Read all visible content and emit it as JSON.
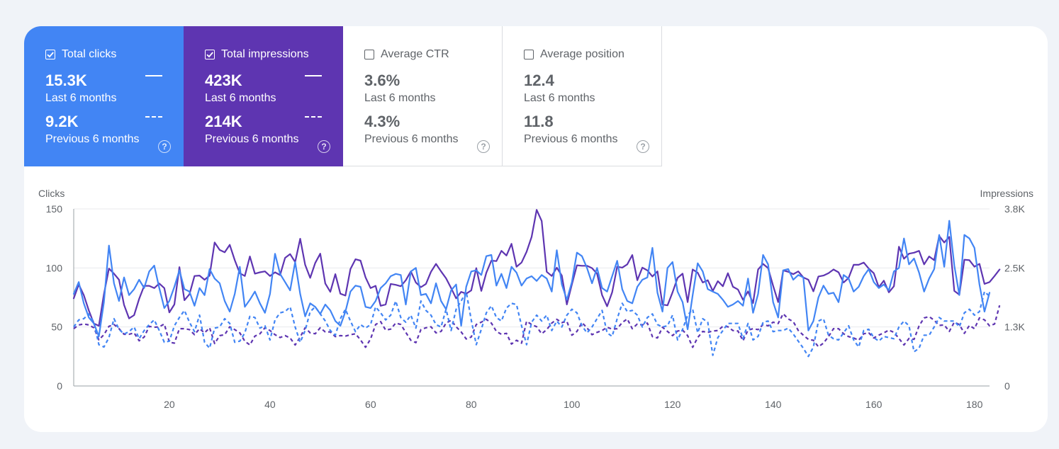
{
  "metrics": [
    {
      "title": "Total clicks",
      "checked": true,
      "current_value": "15.3K",
      "current_label": "Last 6 months",
      "previous_value": "9.2K",
      "previous_label": "Previous 6 months",
      "color": "#4285f4"
    },
    {
      "title": "Total impressions",
      "checked": true,
      "current_value": "423K",
      "current_label": "Last 6 months",
      "previous_value": "214K",
      "previous_label": "Previous 6 months",
      "color": "#5e35b1"
    },
    {
      "title": "Average CTR",
      "checked": false,
      "current_value": "3.6%",
      "current_label": "Last 6 months",
      "previous_value": "4.3%",
      "previous_label": "Previous 6 months",
      "color": "#ffffff"
    },
    {
      "title": "Average position",
      "checked": false,
      "current_value": "12.4",
      "current_label": "Last 6 months",
      "previous_value": "11.8",
      "previous_label": "Previous 6 months",
      "color": "#ffffff"
    }
  ],
  "help_glyph": "?",
  "chart_data": {
    "type": "line",
    "title": "",
    "ylabel": "Clicks",
    "ylabel_right": "Impressions",
    "xlabel": "",
    "xlim": [
      1,
      183
    ],
    "ylim": [
      0,
      150
    ],
    "ylim_right": [
      0,
      3800
    ],
    "y_ticks": [
      "0",
      "50",
      "100",
      "150"
    ],
    "y_right_ticks": [
      "0",
      "1.3K",
      "2.5K",
      "3.8K"
    ],
    "x_ticks": [
      20,
      40,
      60,
      80,
      100,
      120,
      140,
      160,
      180
    ],
    "grid": true,
    "legend": "metric cards above chart",
    "colors": {
      "clicks": "#4285f4",
      "impressions": "#5e35b1"
    },
    "series": [
      {
        "name": "Impressions (Last 6 months)",
        "axis": "right",
        "style": "solid",
        "color": "#5e35b1",
        "values": [
          1880,
          2180,
          1950,
          1620,
          1340,
          1290,
          1970,
          2520,
          2410,
          2280,
          1740,
          1450,
          1520,
          1870,
          2150,
          2150,
          2100,
          2200,
          2100,
          1580,
          1750,
          2550,
          1840,
          1970,
          2360,
          2370,
          2280,
          2370,
          3080,
          2920,
          2870,
          3030,
          2700,
          2420,
          2360,
          2780,
          2410,
          2440,
          2460,
          2360,
          2440,
          2380,
          2750,
          2830,
          2660,
          3160,
          2600,
          2320,
          2640,
          2840,
          2200,
          2020,
          2400,
          1980,
          1940,
          2510,
          2720,
          2690,
          2330,
          2100,
          2150,
          1720,
          1750,
          2190,
          2170,
          2140,
          2270,
          2460,
          2220,
          2120,
          2190,
          2450,
          2620,
          2460,
          2310,
          2100,
          1880,
          2020,
          1980,
          2050,
          2530,
          2040,
          2430,
          2690,
          2680,
          2900,
          2800,
          3050,
          2560,
          2650,
          2880,
          3200,
          3780,
          3540,
          2450,
          2360,
          2540,
          2370,
          1750,
          2180,
          2590,
          2580,
          2580,
          2530,
          2410,
          1950,
          1710,
          2010,
          2560,
          2540,
          2610,
          2810,
          2270,
          2540,
          2480,
          2350,
          2460,
          1750,
          1730,
          2010,
          2320,
          2410,
          1800,
          2500,
          2430,
          2220,
          2270,
          2040,
          2250,
          2140,
          2420,
          2130,
          2070,
          1850,
          2030,
          1780,
          2500,
          2620,
          2530,
          2150,
          1800,
          2480,
          2450,
          2400,
          2460,
          2330,
          2280,
          2030,
          2350,
          2370,
          2420,
          2500,
          2440,
          2220,
          2320,
          2600,
          2600,
          2650,
          2520,
          2420,
          2120,
          2260,
          2010,
          2140,
          2990,
          2730,
          2840,
          2860,
          2900,
          2610,
          2780,
          2700,
          3220,
          3080,
          3200,
          2040,
          1960,
          2710,
          2700,
          2560,
          2620,
          2190,
          2230,
          2360,
          2500
        ]
      },
      {
        "name": "Clicks (Last 6 months)",
        "axis": "left",
        "style": "solid",
        "color": "#4285f4",
        "values": [
          78,
          88,
          70,
          58,
          53,
          42,
          71,
          119,
          87,
          72,
          92,
          77,
          82,
          90,
          83,
          97,
          102,
          83,
          66,
          72,
          84,
          98,
          82,
          80,
          68,
          83,
          77,
          99,
          91,
          87,
          72,
          63,
          78,
          101,
          67,
          73,
          80,
          70,
          62,
          78,
          112,
          95,
          88,
          81,
          105,
          78,
          59,
          70,
          67,
          61,
          69,
          64,
          55,
          51,
          63,
          80,
          85,
          84,
          67,
          66,
          72,
          83,
          87,
          93,
          95,
          94,
          69,
          97,
          100,
          77,
          78,
          70,
          87,
          72,
          65,
          81,
          86,
          51,
          84,
          97,
          98,
          94,
          110,
          111,
          85,
          95,
          83,
          101,
          96,
          85,
          91,
          93,
          89,
          94,
          91,
          80,
          115,
          86,
          73,
          88,
          113,
          110,
          100,
          87,
          100,
          83,
          80,
          93,
          106,
          82,
          72,
          70,
          84,
          90,
          92,
          117,
          79,
          63,
          100,
          105,
          80,
          71,
          48,
          77,
          104,
          97,
          82,
          80,
          78,
          73,
          67,
          69,
          72,
          68,
          91,
          62,
          78,
          111,
          103,
          71,
          58,
          98,
          99,
          90,
          94,
          92,
          47,
          55,
          75,
          85,
          78,
          79,
          71,
          94,
          91,
          80,
          84,
          93,
          99,
          88,
          83,
          86,
          81,
          97,
          100,
          125,
          103,
          108,
          96,
          80,
          91,
          99,
          128,
          101,
          140,
          102,
          77,
          128,
          125,
          117,
          86,
          63,
          79
        ]
      },
      {
        "name": "Impressions (Previous 6 months)",
        "axis": "right",
        "style": "dashed",
        "color": "#5e35b1",
        "values": [
          1230,
          1310,
          1330,
          1310,
          1250,
          990,
          1100,
          1280,
          1320,
          1230,
          1110,
          1110,
          1140,
          970,
          1050,
          1280,
          1260,
          1270,
          1330,
          940,
          920,
          1230,
          1230,
          1210,
          1100,
          1230,
          1140,
          1250,
          910,
          1080,
          1100,
          1270,
          1210,
          1140,
          960,
          880,
          1070,
          1120,
          1250,
          1190,
          1100,
          1040,
          1080,
          1030,
          880,
          1050,
          1250,
          1140,
          1120,
          1250,
          1160,
          1160,
          1060,
          1080,
          1070,
          1100,
          1120,
          990,
          830,
          1010,
          1320,
          1380,
          1200,
          1220,
          1350,
          1320,
          1150,
          980,
          930,
          1210,
          1250,
          1270,
          1140,
          1170,
          1350,
          1410,
          1270,
          1160,
          1010,
          1050,
          1320,
          1370,
          1430,
          1350,
          1170,
          1110,
          1130,
          900,
          980,
          920,
          1390,
          1320,
          1270,
          1120,
          1210,
          1350,
          1430,
          1360,
          1390,
          1090,
          1170,
          1360,
          1250,
          1100,
          1150,
          1190,
          1260,
          1220,
          1230,
          1360,
          1440,
          1230,
          1330,
          1310,
          1350,
          1060,
          1030,
          1260,
          1170,
          1080,
          1180,
          1200,
          1080,
          830,
          1040,
          1170,
          1150,
          1180,
          1190,
          1280,
          1270,
          1190,
          1180,
          970,
          1200,
          1230,
          1210,
          1320,
          1290,
          1370,
          1340,
          1550,
          1440,
          1380,
          1190,
          1090,
          1000,
          980,
          840,
          920,
          1060,
          1230,
          1230,
          1120,
          1060,
          1030,
          980,
          1120,
          1140,
          1030,
          1090,
          1140,
          1200,
          1150,
          1020,
          880,
          1020,
          1000,
          1290,
          1460,
          1490,
          1410,
          1300,
          1310,
          1170,
          1370,
          1320,
          1130,
          1300,
          1230,
          1460,
          1420,
          1290,
          1330,
          1730
        ]
      },
      {
        "name": "Clicks (Previous 6 months)",
        "axis": "left",
        "style": "dashed",
        "color": "#4285f4",
        "values": [
          50,
          56,
          57,
          61,
          54,
          35,
          33,
          41,
          57,
          48,
          44,
          46,
          50,
          40,
          47,
          52,
          56,
          47,
          37,
          38,
          51,
          58,
          64,
          54,
          46,
          60,
          37,
          32,
          49,
          50,
          57,
          53,
          37,
          38,
          45,
          59,
          58,
          49,
          51,
          39,
          56,
          62,
          63,
          67,
          50,
          37,
          47,
          63,
          67,
          61,
          55,
          47,
          43,
          57,
          65,
          55,
          46,
          52,
          49,
          52,
          67,
          62,
          56,
          60,
          72,
          58,
          54,
          60,
          49,
          72,
          64,
          60,
          52,
          50,
          65,
          47,
          65,
          72,
          80,
          56,
          35,
          48,
          62,
          68,
          58,
          55,
          66,
          70,
          69,
          51,
          35,
          54,
          60,
          55,
          60,
          47,
          55,
          50,
          60,
          65,
          62,
          51,
          45,
          50,
          57,
          64,
          45,
          42,
          57,
          70,
          63,
          64,
          60,
          50,
          58,
          61,
          52,
          50,
          51,
          60,
          39,
          48,
          60,
          65,
          45,
          57,
          54,
          26,
          41,
          47,
          53,
          53,
          53,
          40,
          53,
          39,
          42,
          54,
          55,
          46,
          47,
          47,
          49,
          44,
          38,
          32,
          25,
          33,
          55,
          57,
          43,
          40,
          39,
          45,
          51,
          39,
          33,
          47,
          48,
          41,
          38,
          42,
          41,
          40,
          50,
          55,
          51,
          29,
          32,
          43,
          43,
          50,
          58,
          55,
          55,
          55,
          50,
          62,
          65,
          60,
          63,
          80,
          76
        ]
      }
    ]
  }
}
